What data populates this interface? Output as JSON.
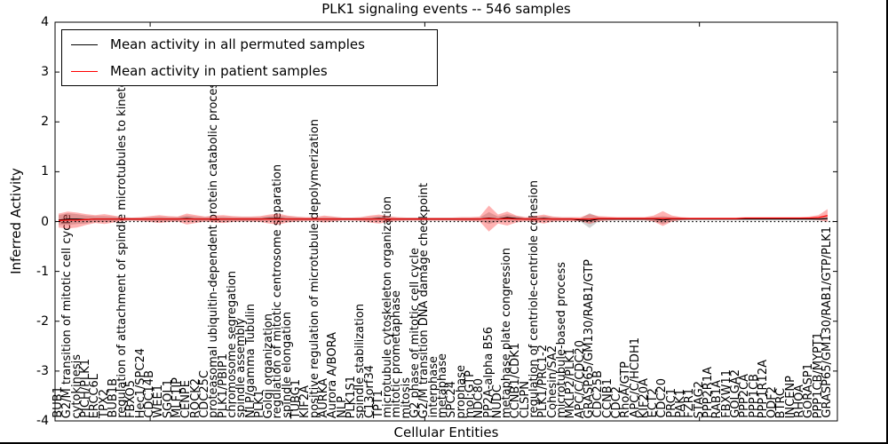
{
  "title": "PLK1 signaling events -- 546 samples",
  "legend": {
    "items": [
      {
        "label": "Mean activity in all permuted samples",
        "color": "#000000"
      },
      {
        "label": "Mean activity in patient samples",
        "color": "#ff0000"
      }
    ]
  },
  "chart_data": {
    "type": "line",
    "title": "PLK1 signaling events -- 546 samples",
    "xlabel": "Cellular Entities",
    "ylabel": "Inferred Activity",
    "ylim": [
      -4,
      4
    ],
    "y_ticks": [
      "4",
      "3",
      "2",
      "1",
      "0",
      "-1",
      "-2",
      "-3",
      "-4"
    ],
    "y_tick_values": [
      4,
      3,
      2,
      1,
      0,
      -1,
      -2,
      -3,
      -4
    ],
    "frame_tick_indices": [
      10,
      40,
      70
    ],
    "zero_line": {
      "value": 0,
      "style": "dotted",
      "color": "#000000"
    },
    "legend_position": "upper left",
    "grid": false,
    "categories": [
      "BUB1",
      "G2/M transition of mitotic cell cycle",
      "cytokinesis",
      "PICH/PLK1",
      "ERCC6L",
      "TPX2",
      "BUB1B",
      "regulation of attachment of spindle microtubules to kinetochore",
      "FBXO5",
      "Hec1/SPC24",
      "CDC14B",
      "WEE1",
      "SGOL1",
      "MLF1IP",
      "CENPE",
      "ROCK2",
      "CDC25C",
      "proteasomal ubiquitin-dependent protein catabolic process",
      "PLK1/PBIP1",
      "chromosome segregation",
      "spindle assembly",
      "NLP/gamma Tubulin",
      "PLK1",
      "Golgi organization",
      "regulation of mitotic centrosome separation",
      "spindle elongation",
      "TUBG1",
      "KIF2A",
      "positive regulation of microtubule depolymerization",
      "AURKA",
      "Aurora A/BORA",
      "NLP",
      "PLK1S1",
      "spindle stabilization",
      "C13orf34",
      "TPT1",
      "microtubule cytoskeleton organization",
      "mitotic prometaphase",
      "mitosis",
      "G2 phase of mitotic cell cycle",
      "G2/M transition DNA damage checkpoint",
      "interphase",
      "metaphase",
      "SPC24",
      "prophase",
      "mol:GTP",
      "NDC80",
      "PP2A-alpha B56",
      "NUDC",
      "metaphase plate congression",
      "CCNB1/CDK1",
      "CLSPN",
      "regulation of centriole-centriole cohesion",
      "PLK1/PRC1-2",
      "Cohesin/SA2",
      "microtubule-based process",
      "MKLP2/PLK1",
      "APC/C/CDC20",
      "GRASP65/GM130/RAB1/GTP",
      "CDC25B",
      "CCNB1",
      "CDC2",
      "RhoA/GTP",
      "APC/C/HCDH1",
      "KIF20A",
      "ECT2",
      "CDC20",
      "PRC1",
      "PAK1",
      "FZR1",
      "STAG2",
      "PPP2R1A",
      "RAB1A",
      "FBXW11",
      "GOLGA2",
      "PPP2CA",
      "PPP1CB",
      "PPP1R12A",
      "ODF2",
      "BTRC",
      "INCENP",
      "RHOA",
      "GORASP1",
      "PPP1CB/MYPT1",
      "GRASP65/GM130/RAB1/GTP/PLK1"
    ],
    "series": [
      {
        "name": "Mean activity in all permuted samples",
        "color": "#000000",
        "values": [
          0.03,
          0.05,
          0.05,
          0.04,
          0.05,
          0.05,
          0.05,
          0.05,
          0.05,
          0.05,
          0.05,
          0.05,
          0.05,
          0.05,
          0.06,
          0.05,
          0.05,
          0.05,
          0.05,
          0.05,
          0.05,
          0.05,
          0.05,
          0.06,
          0.06,
          0.05,
          0.05,
          0.05,
          0.05,
          0.05,
          0.05,
          0.05,
          0.05,
          0.05,
          0.05,
          0.06,
          0.05,
          0.05,
          0.05,
          0.05,
          0.05,
          0.05,
          0.05,
          0.05,
          0.05,
          0.05,
          0.05,
          0.07,
          0.05,
          0.08,
          0.06,
          0.05,
          0.05,
          0.06,
          0.05,
          0.05,
          0.05,
          0.03,
          0.02,
          0.05,
          0.05,
          0.05,
          0.05,
          0.05,
          0.05,
          0.05,
          0.03,
          0.05,
          0.05,
          0.05,
          0.05,
          0.05,
          0.05,
          0.05,
          0.05,
          0.05,
          0.05,
          0.05,
          0.05,
          0.05,
          0.05,
          0.05,
          0.05,
          0.05,
          0.06
        ],
        "band_halfwidth": [
          0.1,
          0.12,
          0.1,
          0.08,
          0.06,
          0.06,
          0.05,
          0.03,
          0.03,
          0.03,
          0.04,
          0.05,
          0.04,
          0.04,
          0.06,
          0.05,
          0.04,
          0.05,
          0.05,
          0.04,
          0.04,
          0.04,
          0.04,
          0.05,
          0.06,
          0.05,
          0.04,
          0.03,
          0.03,
          0.04,
          0.04,
          0.03,
          0.03,
          0.03,
          0.04,
          0.05,
          0.04,
          0.03,
          0.03,
          0.03,
          0.03,
          0.03,
          0.03,
          0.03,
          0.03,
          0.03,
          0.03,
          0.12,
          0.05,
          0.07,
          0.05,
          0.03,
          0.04,
          0.05,
          0.04,
          0.03,
          0.03,
          0.03,
          0.15,
          0.04,
          0.03,
          0.03,
          0.03,
          0.03,
          0.03,
          0.04,
          0.08,
          0.04,
          0.03,
          0.02,
          0.02,
          0.02,
          0.02,
          0.02,
          0.02,
          0.02,
          0.02,
          0.02,
          0.02,
          0.02,
          0.02,
          0.02,
          0.02,
          0.02,
          0.04
        ],
        "band_color": "#808080",
        "band_opacity": 0.35
      },
      {
        "name": "Mean activity in patient samples",
        "color": "#ff0000",
        "values": [
          0.02,
          0.03,
          0.03,
          0.04,
          0.05,
          0.05,
          0.05,
          0.05,
          0.05,
          0.05,
          0.05,
          0.05,
          0.05,
          0.05,
          0.05,
          0.05,
          0.05,
          0.05,
          0.05,
          0.05,
          0.05,
          0.05,
          0.05,
          0.05,
          0.05,
          0.05,
          0.05,
          0.05,
          0.05,
          0.05,
          0.05,
          0.05,
          0.05,
          0.05,
          0.05,
          0.05,
          0.05,
          0.05,
          0.05,
          0.05,
          0.05,
          0.05,
          0.05,
          0.05,
          0.05,
          0.05,
          0.05,
          0.06,
          0.05,
          0.06,
          0.05,
          0.05,
          0.05,
          0.05,
          0.05,
          0.05,
          0.05,
          0.05,
          0.05,
          0.06,
          0.06,
          0.06,
          0.06,
          0.06,
          0.06,
          0.06,
          0.06,
          0.06,
          0.06,
          0.06,
          0.06,
          0.06,
          0.06,
          0.06,
          0.06,
          0.07,
          0.07,
          0.07,
          0.07,
          0.07,
          0.07,
          0.07,
          0.07,
          0.08,
          0.12
        ],
        "band_halfwidth": [
          0.14,
          0.17,
          0.15,
          0.11,
          0.08,
          0.1,
          0.07,
          0.04,
          0.03,
          0.04,
          0.06,
          0.08,
          0.06,
          0.05,
          0.11,
          0.08,
          0.05,
          0.07,
          0.08,
          0.06,
          0.05,
          0.05,
          0.06,
          0.09,
          0.11,
          0.07,
          0.05,
          0.04,
          0.04,
          0.07,
          0.05,
          0.03,
          0.03,
          0.04,
          0.07,
          0.09,
          0.06,
          0.04,
          0.03,
          0.03,
          0.03,
          0.03,
          0.03,
          0.03,
          0.04,
          0.04,
          0.05,
          0.26,
          0.09,
          0.14,
          0.07,
          0.04,
          0.06,
          0.09,
          0.05,
          0.04,
          0.04,
          0.04,
          0.1,
          0.05,
          0.04,
          0.03,
          0.03,
          0.03,
          0.03,
          0.06,
          0.15,
          0.06,
          0.03,
          0.02,
          0.02,
          0.02,
          0.02,
          0.02,
          0.02,
          0.02,
          0.02,
          0.02,
          0.02,
          0.02,
          0.02,
          0.02,
          0.03,
          0.05,
          0.13
        ],
        "band_color": "#ff0000",
        "band_opacity": 0.3
      }
    ]
  }
}
